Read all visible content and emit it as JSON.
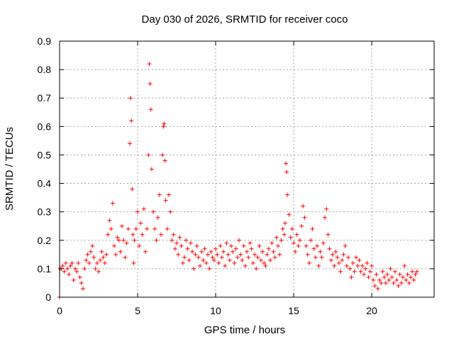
{
  "colors": {
    "marker": "#ff0000",
    "axis": "#000000",
    "grid": "#a0a0a0",
    "background": "#ffffff"
  },
  "chart_data": {
    "type": "scatter",
    "title": "Day 030 of 2026, SRMTID for receiver coco",
    "xlabel": "GPS time / hours",
    "ylabel": "SRMTID / TECUs",
    "xlim": [
      0,
      24
    ],
    "ylim": [
      0,
      0.9
    ],
    "xticks": [
      0,
      5,
      10,
      15,
      20
    ],
    "yticks": [
      0,
      0.1,
      0.2,
      0.3,
      0.4,
      0.5,
      0.6,
      0.7,
      0.8,
      0.9
    ],
    "grid": true,
    "marker": "+",
    "series": [
      {
        "name": "SRMTID",
        "x": [
          0.0,
          0.02,
          0.1,
          0.2,
          0.3,
          0.4,
          0.5,
          0.6,
          0.7,
          0.8,
          0.9,
          1.0,
          1.1,
          1.2,
          1.3,
          1.4,
          1.5,
          1.6,
          1.7,
          1.8,
          1.9,
          2.0,
          2.1,
          2.2,
          2.3,
          2.4,
          2.5,
          2.6,
          2.7,
          2.8,
          2.9,
          3.0,
          3.1,
          3.2,
          3.3,
          3.4,
          3.5,
          3.6,
          3.7,
          3.8,
          3.9,
          4.0,
          4.1,
          4.2,
          4.3,
          4.4,
          4.5,
          4.55,
          4.6,
          4.65,
          4.7,
          4.75,
          4.8,
          4.9,
          5.0,
          5.1,
          5.2,
          5.3,
          5.4,
          5.5,
          5.6,
          5.7,
          5.75,
          5.8,
          5.85,
          5.9,
          6.0,
          6.1,
          6.2,
          6.3,
          6.4,
          6.5,
          6.6,
          6.65,
          6.7,
          6.75,
          6.8,
          6.9,
          7.0,
          7.1,
          7.2,
          7.3,
          7.4,
          7.5,
          7.6,
          7.7,
          7.8,
          7.9,
          8.0,
          8.1,
          8.2,
          8.3,
          8.4,
          8.5,
          8.6,
          8.7,
          8.8,
          8.9,
          9.0,
          9.1,
          9.2,
          9.3,
          9.4,
          9.5,
          9.6,
          9.7,
          9.8,
          9.9,
          10.0,
          10.1,
          10.2,
          10.3,
          10.4,
          10.5,
          10.6,
          10.7,
          10.8,
          10.9,
          11.0,
          11.1,
          11.2,
          11.3,
          11.4,
          11.5,
          11.6,
          11.7,
          11.8,
          11.9,
          12.0,
          12.1,
          12.2,
          12.3,
          12.4,
          12.5,
          12.6,
          12.7,
          12.8,
          12.9,
          13.0,
          13.1,
          13.2,
          13.3,
          13.4,
          13.5,
          13.6,
          13.7,
          13.8,
          13.9,
          14.0,
          14.1,
          14.2,
          14.3,
          14.4,
          14.45,
          14.5,
          14.55,
          14.6,
          14.7,
          14.8,
          14.9,
          15.0,
          15.1,
          15.2,
          15.3,
          15.4,
          15.5,
          15.6,
          15.7,
          15.8,
          15.9,
          16.0,
          16.1,
          16.2,
          16.3,
          16.4,
          16.5,
          16.6,
          16.7,
          16.8,
          16.9,
          17.0,
          17.1,
          17.2,
          17.3,
          17.4,
          17.5,
          17.6,
          17.7,
          17.8,
          17.9,
          18.0,
          18.1,
          18.2,
          18.3,
          18.4,
          18.5,
          18.6,
          18.7,
          18.8,
          18.9,
          19.0,
          19.1,
          19.2,
          19.3,
          19.4,
          19.5,
          19.6,
          19.7,
          19.8,
          19.9,
          20.0,
          20.1,
          20.2,
          20.3,
          20.4,
          20.5,
          20.6,
          20.7,
          20.8,
          20.9,
          21.0,
          21.1,
          21.2,
          21.3,
          21.4,
          21.5,
          21.6,
          21.7,
          21.8,
          21.9,
          22.0,
          22.1,
          22.2,
          22.3,
          22.4,
          22.5,
          22.6,
          22.7,
          22.8,
          22.9
        ],
        "y": [
          0.0,
          0.1,
          0.1,
          0.11,
          0.09,
          0.12,
          0.1,
          0.08,
          0.11,
          0.12,
          0.06,
          0.1,
          0.09,
          0.12,
          0.07,
          0.05,
          0.03,
          0.1,
          0.13,
          0.15,
          0.12,
          0.16,
          0.18,
          0.14,
          0.1,
          0.12,
          0.09,
          0.13,
          0.16,
          0.14,
          0.12,
          0.15,
          0.22,
          0.27,
          0.24,
          0.33,
          0.18,
          0.15,
          0.21,
          0.2,
          0.16,
          0.25,
          0.2,
          0.14,
          0.19,
          0.24,
          0.54,
          0.7,
          0.62,
          0.38,
          0.22,
          0.12,
          0.2,
          0.24,
          0.3,
          0.18,
          0.26,
          0.22,
          0.31,
          0.16,
          0.24,
          0.5,
          0.82,
          0.75,
          0.66,
          0.45,
          0.3,
          0.24,
          0.2,
          0.28,
          0.36,
          0.22,
          0.5,
          0.6,
          0.61,
          0.48,
          0.34,
          0.24,
          0.36,
          0.3,
          0.2,
          0.22,
          0.17,
          0.19,
          0.15,
          0.21,
          0.18,
          0.12,
          0.14,
          0.2,
          0.17,
          0.13,
          0.19,
          0.16,
          0.1,
          0.15,
          0.18,
          0.14,
          0.11,
          0.16,
          0.13,
          0.17,
          0.12,
          0.15,
          0.1,
          0.16,
          0.14,
          0.13,
          0.17,
          0.15,
          0.12,
          0.18,
          0.14,
          0.16,
          0.11,
          0.19,
          0.15,
          0.13,
          0.18,
          0.16,
          0.12,
          0.17,
          0.14,
          0.2,
          0.15,
          0.13,
          0.18,
          0.11,
          0.16,
          0.14,
          0.19,
          0.17,
          0.12,
          0.15,
          0.1,
          0.14,
          0.18,
          0.13,
          0.16,
          0.12,
          0.11,
          0.15,
          0.17,
          0.13,
          0.19,
          0.16,
          0.14,
          0.21,
          0.18,
          0.15,
          0.2,
          0.24,
          0.22,
          0.26,
          0.47,
          0.44,
          0.36,
          0.29,
          0.21,
          0.24,
          0.19,
          0.16,
          0.22,
          0.18,
          0.2,
          0.25,
          0.32,
          0.28,
          0.18,
          0.15,
          0.12,
          0.2,
          0.24,
          0.17,
          0.14,
          0.18,
          0.11,
          0.16,
          0.14,
          0.19,
          0.28,
          0.31,
          0.22,
          0.17,
          0.13,
          0.15,
          0.11,
          0.16,
          0.14,
          0.12,
          0.09,
          0.13,
          0.15,
          0.18,
          0.11,
          0.14,
          0.1,
          0.07,
          0.12,
          0.09,
          0.14,
          0.11,
          0.13,
          0.09,
          0.11,
          0.08,
          0.1,
          0.12,
          0.07,
          0.09,
          0.11,
          0.06,
          0.04,
          0.08,
          0.03,
          0.06,
          0.05,
          0.09,
          0.07,
          0.05,
          0.08,
          0.06,
          0.1,
          0.07,
          0.05,
          0.09,
          0.06,
          0.04,
          0.08,
          0.05,
          0.07,
          0.11,
          0.06,
          0.08,
          0.05,
          0.07,
          0.09,
          0.06,
          0.08,
          0.09
        ]
      }
    ]
  }
}
